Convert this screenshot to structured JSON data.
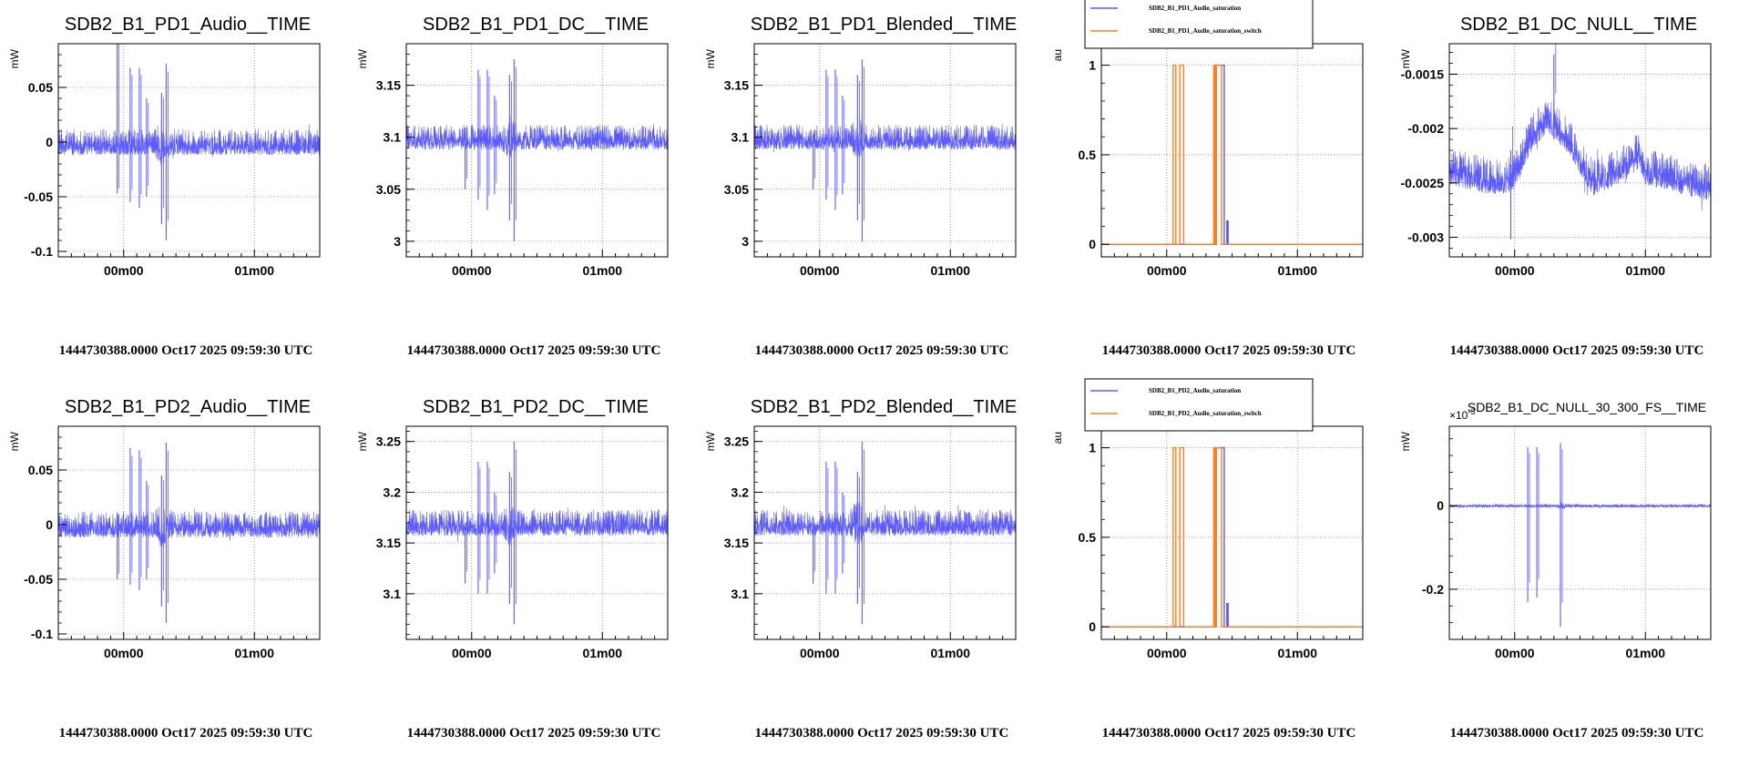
{
  "footer_text": "1444730388.0000 Oct17 2025 09:59:30 UTC",
  "colors": {
    "blue": "#5b5bff",
    "orange": "#ff7f1e",
    "grid": "#888888"
  },
  "chart_data": [
    {
      "id": "p1",
      "type": "line",
      "title": "SDB2_B1_PD1_Audio__TIME",
      "ylabel": "mW",
      "xticks": [
        "00m00",
        "01m00"
      ],
      "yticks": [
        0.05,
        0,
        -0.05,
        -0.1
      ],
      "ytick_labels": [
        "0.05",
        "0",
        "-0.05",
        "-0.1"
      ],
      "ylim": [
        -0.105,
        0.09
      ],
      "series": [
        {
          "name": "SDB2_B1_PD1_Audio",
          "color": "#5b5bff",
          "kind": "noise",
          "baseline": 0.0,
          "amp": 0.012,
          "events": [
            [
              -0.05,
              -0.047,
              0.2
            ],
            [
              0.05,
              0.068,
              -0.055
            ],
            [
              0.12,
              0.068,
              -0.06
            ],
            [
              0.175,
              0.04,
              -0.05
            ],
            [
              0.325,
              0.072,
              -0.09
            ],
            [
              0.29,
              0.045,
              -0.075
            ]
          ],
          "bursts": [
            [
              0.29,
              0.06,
              1.8
            ]
          ]
        }
      ]
    },
    {
      "id": "p2",
      "type": "line",
      "title": "SDB2_B1_PD1_DC__TIME",
      "ylabel": "mW",
      "xticks": [
        "00m00",
        "01m00"
      ],
      "yticks": [
        3.15,
        3.1,
        3.05,
        3
      ],
      "ytick_labels": [
        "3.15",
        "3.1",
        "3.05",
        "3"
      ],
      "ylim": [
        2.985,
        3.19
      ],
      "series": [
        {
          "name": "SDB2_B1_PD1_DC",
          "color": "#5b5bff",
          "kind": "noise",
          "baseline": 3.1,
          "amp": 0.012,
          "events": [
            [
              -0.05,
              3.1,
              3.05
            ],
            [
              0.05,
              3.165,
              3.04
            ],
            [
              0.12,
              3.165,
              3.03
            ],
            [
              0.175,
              3.14,
              3.045
            ],
            [
              0.325,
              3.175,
              3.0
            ],
            [
              0.29,
              3.16,
              3.02
            ]
          ],
          "bursts": [
            [
              0.29,
              0.06,
              1.8
            ]
          ]
        }
      ]
    },
    {
      "id": "p3",
      "type": "line",
      "title": "SDB2_B1_PD1_Blended__TIME",
      "ylabel": "mW",
      "xticks": [
        "00m00",
        "01m00"
      ],
      "yticks": [
        3.15,
        3.1,
        3.05,
        3
      ],
      "ytick_labels": [
        "3.15",
        "3.1",
        "3.05",
        "3"
      ],
      "ylim": [
        2.985,
        3.19
      ],
      "series": [
        {
          "name": "SDB2_B1_PD1_Blended",
          "color": "#5b5bff",
          "kind": "noise",
          "baseline": 3.1,
          "amp": 0.012,
          "events": [
            [
              -0.05,
              3.1,
              3.05
            ],
            [
              0.05,
              3.165,
              3.04
            ],
            [
              0.12,
              3.165,
              3.03
            ],
            [
              0.175,
              3.14,
              3.045
            ],
            [
              0.325,
              3.175,
              3.0
            ],
            [
              0.29,
              3.16,
              3.02
            ]
          ],
          "bursts": [
            [
              0.29,
              0.06,
              1.8
            ]
          ]
        }
      ]
    },
    {
      "id": "p4",
      "type": "line",
      "title": "",
      "ylabel": "au",
      "xticks": [
        "00m00",
        "01m00"
      ],
      "yticks": [
        1,
        0.5,
        0
      ],
      "ytick_labels": [
        "1",
        "0.5",
        "0"
      ],
      "ylim": [
        -0.07,
        1.12
      ],
      "legend": [
        "SDB2_B1_PD1_Audio_saturation",
        "SDB2_B1_PD1_Audio_saturation_switch"
      ],
      "series": [
        {
          "name": "SDB2_B1_PD1_Audio_saturation",
          "color": "#5b5bff",
          "kind": "step",
          "steps": [
            [
              -1.0,
              0
            ],
            [
              0.38,
              1
            ],
            [
              0.44,
              0
            ],
            [
              0.46,
              0.13
            ],
            [
              0.47,
              0
            ]
          ]
        },
        {
          "name": "SDB2_B1_PD1_Audio_saturation_switch",
          "color": "#ff7f1e",
          "kind": "step",
          "steps": [
            [
              -1.0,
              0
            ],
            [
              0.05,
              1
            ],
            [
              0.07,
              0
            ],
            [
              0.1,
              1
            ],
            [
              0.13,
              0
            ],
            [
              0.36,
              1
            ],
            [
              0.37,
              0
            ],
            [
              0.38,
              1
            ],
            [
              0.42,
              0
            ]
          ]
        }
      ]
    },
    {
      "id": "p5",
      "type": "line",
      "title": "SDB2_B1_DC_NULL__TIME",
      "ylabel": "mW",
      "xticks": [
        "00m00",
        "01m00"
      ],
      "yticks": [
        -0.0015,
        -0.002,
        -0.0025,
        -0.003
      ],
      "ytick_labels": [
        "-0.0015",
        "-0.002",
        "-0.0025",
        "-0.003"
      ],
      "ylim": [
        -0.00318,
        -0.00122
      ],
      "series": [
        {
          "name": "SDB2_B1_DC_NULL",
          "color": "#5b5bff",
          "kind": "drift",
          "shape": [
            [
              -0.5,
              -0.00235
            ],
            [
              -0.15,
              -0.00245
            ],
            [
              0.0,
              -0.0024
            ],
            [
              0.1,
              -0.0021
            ],
            [
              0.25,
              -0.00185
            ],
            [
              0.4,
              -0.00205
            ],
            [
              0.6,
              -0.00245
            ],
            [
              0.8,
              -0.00235
            ],
            [
              0.95,
              -0.0022
            ],
            [
              1.0,
              -0.00235
            ],
            [
              1.5,
              -0.0025
            ]
          ],
          "amp": 0.00017,
          "events": [
            [
              -0.03,
              -0.0022,
              -0.00302
            ],
            [
              0.3,
              -0.00132,
              -0.0021
            ]
          ]
        }
      ]
    },
    {
      "id": "p6",
      "type": "line",
      "title": "SDB2_B1_PD2_Audio__TIME",
      "ylabel": "mW",
      "xticks": [
        "00m00",
        "01m00"
      ],
      "yticks": [
        0.05,
        0,
        -0.05,
        -0.1
      ],
      "ytick_labels": [
        "0.05",
        "0",
        "-0.05",
        "-0.1"
      ],
      "ylim": [
        -0.105,
        0.09
      ],
      "series": [
        {
          "name": "SDB2_B1_PD2_Audio",
          "color": "#5b5bff",
          "kind": "noise",
          "baseline": 0.0,
          "amp": 0.012,
          "events": [
            [
              -0.05,
              -0.05,
              0.01
            ],
            [
              0.05,
              0.07,
              -0.055
            ],
            [
              0.12,
              0.068,
              -0.06
            ],
            [
              0.175,
              0.04,
              -0.05
            ],
            [
              0.325,
              0.075,
              -0.09
            ],
            [
              0.29,
              0.045,
              -0.075
            ]
          ],
          "bursts": [
            [
              0.29,
              0.06,
              1.8
            ]
          ]
        }
      ]
    },
    {
      "id": "p7",
      "type": "line",
      "title": "SDB2_B1_PD2_DC__TIME",
      "ylabel": "mW",
      "xticks": [
        "00m00",
        "01m00"
      ],
      "yticks": [
        3.25,
        3.2,
        3.15,
        3.1
      ],
      "ytick_labels": [
        "3.25",
        "3.2",
        "3.15",
        "3.1"
      ],
      "ylim": [
        3.055,
        3.265
      ],
      "series": [
        {
          "name": "SDB2_B1_PD2_DC",
          "color": "#5b5bff",
          "kind": "noise",
          "baseline": 3.17,
          "amp": 0.013,
          "events": [
            [
              -0.05,
              3.17,
              3.11
            ],
            [
              0.05,
              3.23,
              3.1
            ],
            [
              0.12,
              3.23,
              3.1
            ],
            [
              0.175,
              3.2,
              3.12
            ],
            [
              0.325,
              3.25,
              3.07
            ],
            [
              0.29,
              3.22,
              3.09
            ]
          ],
          "bursts": [
            [
              0.29,
              0.06,
              1.8
            ]
          ]
        }
      ]
    },
    {
      "id": "p8",
      "type": "line",
      "title": "SDB2_B1_PD2_Blended__TIME",
      "ylabel": "mW",
      "xticks": [
        "00m00",
        "01m00"
      ],
      "yticks": [
        3.25,
        3.2,
        3.15,
        3.1
      ],
      "ytick_labels": [
        "3.25",
        "3.2",
        "3.15",
        "3.1"
      ],
      "ylim": [
        3.055,
        3.265
      ],
      "series": [
        {
          "name": "SDB2_B1_PD2_Blended",
          "color": "#5b5bff",
          "kind": "noise",
          "baseline": 3.17,
          "amp": 0.013,
          "events": [
            [
              -0.05,
              3.17,
              3.11
            ],
            [
              0.05,
              3.23,
              3.1
            ],
            [
              0.12,
              3.23,
              3.1
            ],
            [
              0.175,
              3.2,
              3.12
            ],
            [
              0.325,
              3.25,
              3.07
            ],
            [
              0.29,
              3.22,
              3.09
            ]
          ],
          "bursts": [
            [
              0.29,
              0.06,
              1.8
            ]
          ]
        }
      ]
    },
    {
      "id": "p9",
      "type": "line",
      "title": "",
      "ylabel": "au",
      "xticks": [
        "00m00",
        "01m00"
      ],
      "yticks": [
        1,
        0.5,
        0
      ],
      "ytick_labels": [
        "1",
        "0.5",
        "0"
      ],
      "ylim": [
        -0.07,
        1.12
      ],
      "legend": [
        "SDB2_B1_PD2_Audio_saturation",
        "SDB2_B1_PD2_Audio_saturation_switch"
      ],
      "series": [
        {
          "name": "SDB2_B1_PD2_Audio_saturation",
          "color": "#5b5bff",
          "kind": "step",
          "steps": [
            [
              -1.0,
              0
            ],
            [
              0.38,
              1
            ],
            [
              0.44,
              0
            ],
            [
              0.46,
              0.13
            ],
            [
              0.47,
              0
            ]
          ]
        },
        {
          "name": "SDB2_B1_PD2_Audio_saturation_switch",
          "color": "#ff7f1e",
          "kind": "step",
          "steps": [
            [
              -1.0,
              0
            ],
            [
              0.05,
              1
            ],
            [
              0.07,
              0
            ],
            [
              0.1,
              1
            ],
            [
              0.13,
              0
            ],
            [
              0.36,
              1
            ],
            [
              0.37,
              0
            ],
            [
              0.38,
              1
            ],
            [
              0.42,
              0
            ]
          ]
        }
      ]
    },
    {
      "id": "p10",
      "type": "line",
      "title": "SDB2_B1_DC_NULL_30_300_FS__TIME",
      "ylabel": "mW",
      "multiplier": "×10",
      "multiplier_exp": "-3",
      "xticks": [
        "00m00",
        "01m00"
      ],
      "yticks": [
        0,
        -0.2
      ],
      "ytick_labels": [
        "0",
        "-0.2"
      ],
      "ylim": [
        -0.32,
        0.19
      ],
      "series": [
        {
          "name": "SDB2_B1_DC_NULL_30_300_FS",
          "color": "#5b5bff",
          "kind": "noise",
          "baseline": 0.0,
          "amp": 0.004,
          "events": [
            [
              0.1,
              0.14,
              -0.23
            ],
            [
              0.17,
              0.14,
              -0.22
            ],
            [
              0.35,
              0.15,
              -0.29
            ]
          ],
          "bursts": [
            [
              0.36,
              0.03,
              3
            ]
          ]
        }
      ]
    }
  ]
}
